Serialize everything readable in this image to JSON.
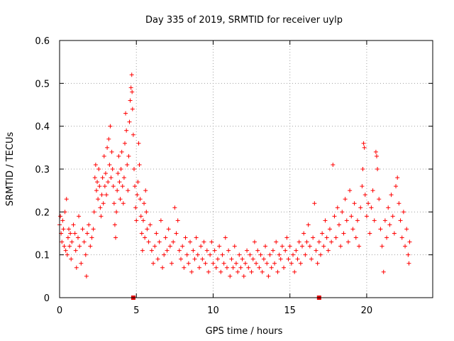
{
  "chart_data": {
    "type": "scatter",
    "title": "Day 335 of 2019, SRMTID for receiver uylp",
    "xlabel": "GPS time / hours",
    "ylabel": "SRMTID / TECUs",
    "xlim": [
      0,
      24.3
    ],
    "ylim": [
      0,
      0.6
    ],
    "x_ticks": [
      0,
      5,
      10,
      15,
      20
    ],
    "x_tick_labels": [
      "0",
      "5",
      "10",
      "15",
      "20"
    ],
    "y_ticks": [
      0,
      0.1,
      0.2,
      0.3,
      0.4,
      0.5,
      0.6
    ],
    "y_tick_labels": [
      "0",
      "0.1",
      "0.2",
      "0.3",
      "0.4",
      "0.5",
      "0.6"
    ],
    "grid": true,
    "marker": "plus",
    "color": "#ff0000",
    "series": [
      {
        "name": "SRMTID",
        "points": [
          [
            0.0,
            0.17
          ],
          [
            0.05,
            0.19
          ],
          [
            0.1,
            0.15
          ],
          [
            0.15,
            0.13
          ],
          [
            0.2,
            0.18
          ],
          [
            0.25,
            0.16
          ],
          [
            0.3,
            0.12
          ],
          [
            0.35,
            0.2
          ],
          [
            0.4,
            0.11
          ],
          [
            0.45,
            0.23
          ],
          [
            0.5,
            0.1
          ],
          [
            0.55,
            0.14
          ],
          [
            0.6,
            0.16
          ],
          [
            0.65,
            0.12
          ],
          [
            0.7,
            0.15
          ],
          [
            0.75,
            0.09
          ],
          [
            0.8,
            0.13
          ],
          [
            0.9,
            0.17
          ],
          [
            1.0,
            0.15
          ],
          [
            1.05,
            0.11
          ],
          [
            1.1,
            0.07
          ],
          [
            1.2,
            0.14
          ],
          [
            1.25,
            0.19
          ],
          [
            1.3,
            0.12
          ],
          [
            1.4,
            0.08
          ],
          [
            1.5,
            0.16
          ],
          [
            1.6,
            0.13
          ],
          [
            1.7,
            0.1
          ],
          [
            1.75,
            0.05
          ],
          [
            1.8,
            0.15
          ],
          [
            1.9,
            0.17
          ],
          [
            2.0,
            0.12
          ],
          [
            2.1,
            0.14
          ],
          [
            2.2,
            0.16
          ],
          [
            2.25,
            0.2
          ],
          [
            2.3,
            0.28
          ],
          [
            2.35,
            0.31
          ],
          [
            2.4,
            0.25
          ],
          [
            2.45,
            0.27
          ],
          [
            2.5,
            0.23
          ],
          [
            2.55,
            0.3
          ],
          [
            2.6,
            0.26
          ],
          [
            2.65,
            0.21
          ],
          [
            2.7,
            0.19
          ],
          [
            2.75,
            0.24
          ],
          [
            2.8,
            0.28
          ],
          [
            2.85,
            0.22
          ],
          [
            2.9,
            0.33
          ],
          [
            2.95,
            0.26
          ],
          [
            3.0,
            0.29
          ],
          [
            3.05,
            0.24
          ],
          [
            3.1,
            0.35
          ],
          [
            3.15,
            0.27
          ],
          [
            3.2,
            0.37
          ],
          [
            3.25,
            0.31
          ],
          [
            3.3,
            0.4
          ],
          [
            3.35,
            0.28
          ],
          [
            3.4,
            0.34
          ],
          [
            3.45,
            0.3
          ],
          [
            3.5,
            0.26
          ],
          [
            3.55,
            0.22
          ],
          [
            3.6,
            0.17
          ],
          [
            3.65,
            0.14
          ],
          [
            3.7,
            0.2
          ],
          [
            3.75,
            0.25
          ],
          [
            3.8,
            0.29
          ],
          [
            3.85,
            0.33
          ],
          [
            3.9,
            0.27
          ],
          [
            3.95,
            0.23
          ],
          [
            4.0,
            0.3
          ],
          [
            4.05,
            0.34
          ],
          [
            4.1,
            0.26
          ],
          [
            4.15,
            0.22
          ],
          [
            4.2,
            0.28
          ],
          [
            4.25,
            0.36
          ],
          [
            4.3,
            0.43
          ],
          [
            4.35,
            0.39
          ],
          [
            4.4,
            0.31
          ],
          [
            4.45,
            0.25
          ],
          [
            4.5,
            0.33
          ],
          [
            4.55,
            0.41
          ],
          [
            4.6,
            0.46
          ],
          [
            4.65,
            0.49
          ],
          [
            4.7,
            0.52
          ],
          [
            4.72,
            0.48
          ],
          [
            4.75,
            0.44
          ],
          [
            4.8,
            0.38
          ],
          [
            4.85,
            0.3
          ],
          [
            4.9,
            0.26
          ],
          [
            4.95,
            0.21
          ],
          [
            5.0,
            0.18
          ],
          [
            5.05,
            0.24
          ],
          [
            5.1,
            0.27
          ],
          [
            5.15,
            0.36
          ],
          [
            5.2,
            0.31
          ],
          [
            5.25,
            0.23
          ],
          [
            5.3,
            0.19
          ],
          [
            5.35,
            0.15
          ],
          [
            5.4,
            0.11
          ],
          [
            5.45,
            0.18
          ],
          [
            5.5,
            0.22
          ],
          [
            5.55,
            0.14
          ],
          [
            5.6,
            0.25
          ],
          [
            5.65,
            0.2
          ],
          [
            5.7,
            0.16
          ],
          [
            5.8,
            0.13
          ],
          [
            5.9,
            0.17
          ],
          [
            6.0,
            0.11
          ],
          [
            6.1,
            0.08
          ],
          [
            6.2,
            0.12
          ],
          [
            6.3,
            0.15
          ],
          [
            6.4,
            0.09
          ],
          [
            6.5,
            0.13
          ],
          [
            6.6,
            0.18
          ],
          [
            6.7,
            0.07
          ],
          [
            6.8,
            0.1
          ],
          [
            6.9,
            0.14
          ],
          [
            7.0,
            0.11
          ],
          [
            7.1,
            0.16
          ],
          [
            7.2,
            0.12
          ],
          [
            7.3,
            0.08
          ],
          [
            7.4,
            0.13
          ],
          [
            7.5,
            0.21
          ],
          [
            7.6,
            0.15
          ],
          [
            7.7,
            0.18
          ],
          [
            7.8,
            0.11
          ],
          [
            7.9,
            0.09
          ],
          [
            8.0,
            0.12
          ],
          [
            8.1,
            0.07
          ],
          [
            8.2,
            0.14
          ],
          [
            8.3,
            0.1
          ],
          [
            8.4,
            0.08
          ],
          [
            8.5,
            0.13
          ],
          [
            8.6,
            0.06
          ],
          [
            8.7,
            0.11
          ],
          [
            8.8,
            0.09
          ],
          [
            8.9,
            0.14
          ],
          [
            9.0,
            0.1
          ],
          [
            9.1,
            0.07
          ],
          [
            9.2,
            0.12
          ],
          [
            9.3,
            0.09
          ],
          [
            9.4,
            0.13
          ],
          [
            9.5,
            0.08
          ],
          [
            9.6,
            0.11
          ],
          [
            9.7,
            0.06
          ],
          [
            9.8,
            0.1
          ],
          [
            9.9,
            0.13
          ],
          [
            10.0,
            0.08
          ],
          [
            10.1,
            0.11
          ],
          [
            10.2,
            0.07
          ],
          [
            10.3,
            0.09
          ],
          [
            10.4,
            0.12
          ],
          [
            10.5,
            0.06
          ],
          [
            10.6,
            0.1
          ],
          [
            10.7,
            0.08
          ],
          [
            10.8,
            0.14
          ],
          [
            10.9,
            0.07
          ],
          [
            11.0,
            0.11
          ],
          [
            11.1,
            0.05
          ],
          [
            11.2,
            0.09
          ],
          [
            11.3,
            0.07
          ],
          [
            11.4,
            0.12
          ],
          [
            11.5,
            0.08
          ],
          [
            11.6,
            0.06
          ],
          [
            11.7,
            0.1
          ],
          [
            11.8,
            0.07
          ],
          [
            11.9,
            0.09
          ],
          [
            12.0,
            0.05
          ],
          [
            12.1,
            0.08
          ],
          [
            12.2,
            0.11
          ],
          [
            12.3,
            0.07
          ],
          [
            12.4,
            0.1
          ],
          [
            12.5,
            0.06
          ],
          [
            12.6,
            0.09
          ],
          [
            12.7,
            0.13
          ],
          [
            12.8,
            0.08
          ],
          [
            12.9,
            0.11
          ],
          [
            13.0,
            0.07
          ],
          [
            13.1,
            0.1
          ],
          [
            13.2,
            0.06
          ],
          [
            13.3,
            0.09
          ],
          [
            13.4,
            0.12
          ],
          [
            13.5,
            0.08
          ],
          [
            13.6,
            0.05
          ],
          [
            13.7,
            0.1
          ],
          [
            13.8,
            0.07
          ],
          [
            13.9,
            0.11
          ],
          [
            14.0,
            0.08
          ],
          [
            14.1,
            0.13
          ],
          [
            14.2,
            0.06
          ],
          [
            14.3,
            0.1
          ],
          [
            14.4,
            0.09
          ],
          [
            14.5,
            0.12
          ],
          [
            14.6,
            0.07
          ],
          [
            14.7,
            0.11
          ],
          [
            14.8,
            0.14
          ],
          [
            14.9,
            0.09
          ],
          [
            15.0,
            0.12
          ],
          [
            15.1,
            0.08
          ],
          [
            15.2,
            0.1
          ],
          [
            15.3,
            0.06
          ],
          [
            15.4,
            0.11
          ],
          [
            15.5,
            0.09
          ],
          [
            15.6,
            0.13
          ],
          [
            15.7,
            0.08
          ],
          [
            15.8,
            0.12
          ],
          [
            15.9,
            0.15
          ],
          [
            16.0,
            0.1
          ],
          [
            16.1,
            0.13
          ],
          [
            16.2,
            0.17
          ],
          [
            16.3,
            0.12
          ],
          [
            16.4,
            0.09
          ],
          [
            16.5,
            0.14
          ],
          [
            16.6,
            0.22
          ],
          [
            16.7,
            0.11
          ],
          [
            16.8,
            0.08
          ],
          [
            16.9,
            0.13
          ],
          [
            17.0,
            0.1
          ],
          [
            17.1,
            0.15
          ],
          [
            17.2,
            0.12
          ],
          [
            17.3,
            0.18
          ],
          [
            17.4,
            0.14
          ],
          [
            17.5,
            0.11
          ],
          [
            17.6,
            0.16
          ],
          [
            17.7,
            0.13
          ],
          [
            17.8,
            0.31
          ],
          [
            17.9,
            0.19
          ],
          [
            18.0,
            0.14
          ],
          [
            18.1,
            0.21
          ],
          [
            18.2,
            0.17
          ],
          [
            18.3,
            0.12
          ],
          [
            18.4,
            0.2
          ],
          [
            18.5,
            0.15
          ],
          [
            18.6,
            0.23
          ],
          [
            18.7,
            0.18
          ],
          [
            18.8,
            0.13
          ],
          [
            18.9,
            0.25
          ],
          [
            19.0,
            0.19
          ],
          [
            19.1,
            0.16
          ],
          [
            19.2,
            0.22
          ],
          [
            19.3,
            0.14
          ],
          [
            19.4,
            0.18
          ],
          [
            19.5,
            0.12
          ],
          [
            19.6,
            0.21
          ],
          [
            19.7,
            0.26
          ],
          [
            19.75,
            0.3
          ],
          [
            19.8,
            0.36
          ],
          [
            19.85,
            0.35
          ],
          [
            19.9,
            0.24
          ],
          [
            20.0,
            0.19
          ],
          [
            20.1,
            0.22
          ],
          [
            20.2,
            0.15
          ],
          [
            20.3,
            0.21
          ],
          [
            20.4,
            0.25
          ],
          [
            20.5,
            0.18
          ],
          [
            20.6,
            0.34
          ],
          [
            20.65,
            0.33
          ],
          [
            20.7,
            0.3
          ],
          [
            20.8,
            0.23
          ],
          [
            20.9,
            0.16
          ],
          [
            21.0,
            0.12
          ],
          [
            21.1,
            0.06
          ],
          [
            21.2,
            0.18
          ],
          [
            21.3,
            0.14
          ],
          [
            21.4,
            0.21
          ],
          [
            21.5,
            0.17
          ],
          [
            21.6,
            0.24
          ],
          [
            21.7,
            0.19
          ],
          [
            21.8,
            0.15
          ],
          [
            21.9,
            0.26
          ],
          [
            22.0,
            0.28
          ],
          [
            22.1,
            0.22
          ],
          [
            22.2,
            0.18
          ],
          [
            22.3,
            0.14
          ],
          [
            22.4,
            0.2
          ],
          [
            22.5,
            0.12
          ],
          [
            22.6,
            0.16
          ],
          [
            22.7,
            0.1
          ],
          [
            22.75,
            0.08
          ],
          [
            22.8,
            0.13
          ]
        ]
      }
    ],
    "axis_markers": [
      {
        "x": 4.8,
        "y": 0
      },
      {
        "x": 16.9,
        "y": 0
      }
    ]
  }
}
